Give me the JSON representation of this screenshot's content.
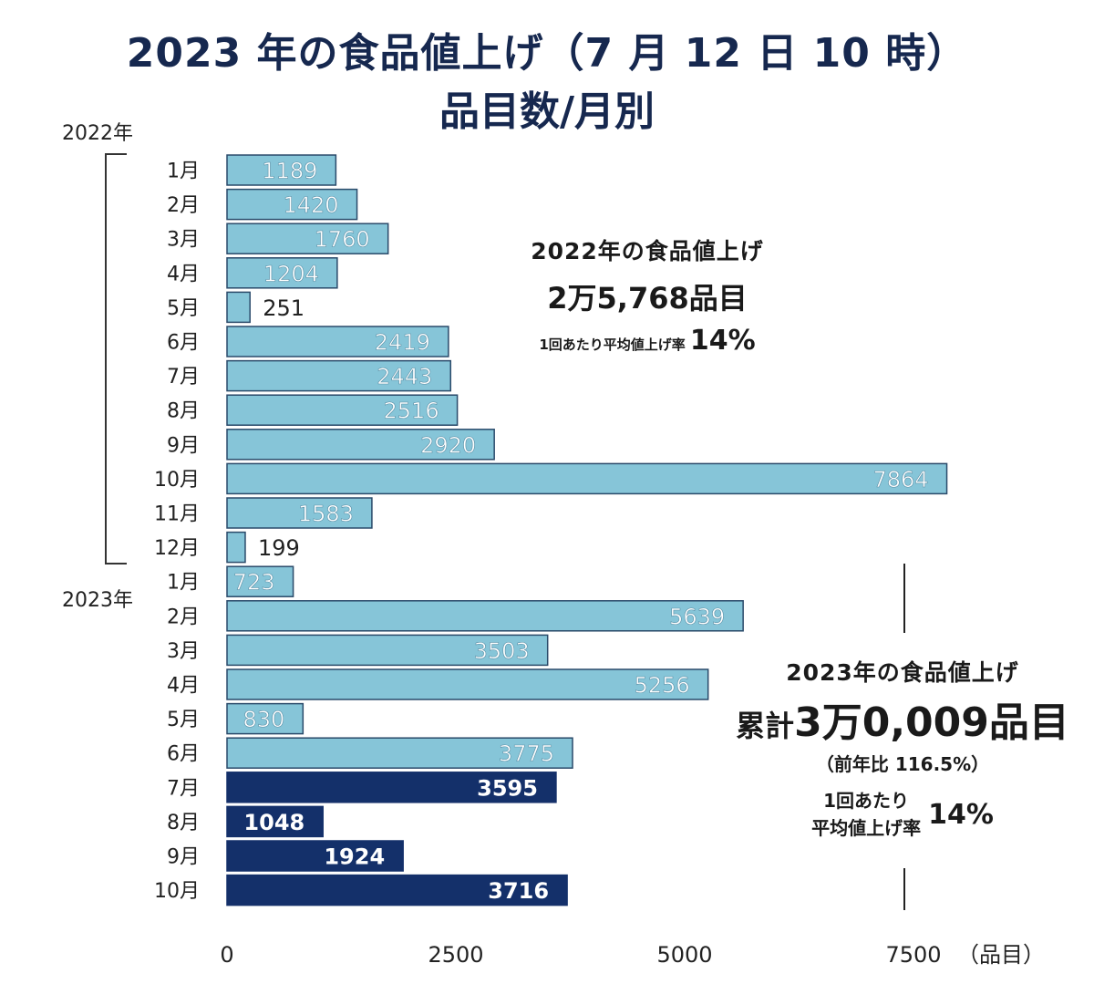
{
  "title": {
    "line1": "2023 年の食品値上げ（7 月 12 日 10 時）",
    "line2": "品目数/月別"
  },
  "year_labels": {
    "y2022": "2022年",
    "y2023": "2023年"
  },
  "chart_data": {
    "type": "bar",
    "orientation": "horizontal",
    "categories": [
      "1月",
      "2月",
      "3月",
      "4月",
      "5月",
      "6月",
      "7月",
      "8月",
      "9月",
      "10月",
      "11月",
      "12月",
      "1月",
      "2月",
      "3月",
      "4月",
      "5月",
      "6月",
      "7月",
      "8月",
      "9月",
      "10月"
    ],
    "values": [
      1189,
      1420,
      1760,
      1204,
      251,
      2419,
      2443,
      2516,
      2920,
      7864,
      1583,
      199,
      723,
      5639,
      3503,
      5256,
      830,
      3775,
      3595,
      1048,
      1924,
      3716
    ],
    "value_labels": [
      "1189",
      "1420",
      "1760",
      "1204",
      "251",
      "2419",
      "2443",
      "2516",
      "2920",
      "7864",
      "1583",
      "199",
      "723",
      "5639",
      "3503",
      "5256",
      "830",
      "3775",
      "3595",
      "1048",
      "1924",
      "3716"
    ],
    "series_kind": [
      "past",
      "past",
      "past",
      "past",
      "past",
      "past",
      "past",
      "past",
      "past",
      "past",
      "past",
      "past",
      "past",
      "past",
      "past",
      "past",
      "past",
      "past",
      "future",
      "future",
      "future",
      "future"
    ],
    "colors": {
      "past": "#86c5d8",
      "future": "#14306a",
      "past_border": "#2a4a6a"
    },
    "xlim": [
      0,
      7500
    ],
    "xticks": [
      "0",
      "2500",
      "5000",
      "7500"
    ],
    "xtick_values": [
      0,
      2500,
      5000,
      7500
    ],
    "xunit": "（品目）",
    "group_labels": [
      "2022年",
      "2023年"
    ]
  },
  "annotations": {
    "a2022": {
      "heading": "2022年の食品値上げ",
      "total": "2万5,768品目",
      "avg_label": "1回あたり平均値上げ率",
      "avg_value": "14%"
    },
    "a2023": {
      "heading": "2023年の食品値上げ",
      "total_prefix": "累計",
      "total": "3万0,009品目",
      "yoy": "（前年比 116.5%）",
      "avg_label_1": "1回あたり",
      "avg_label_2": "平均値上げ率",
      "avg_value": "14%"
    }
  }
}
